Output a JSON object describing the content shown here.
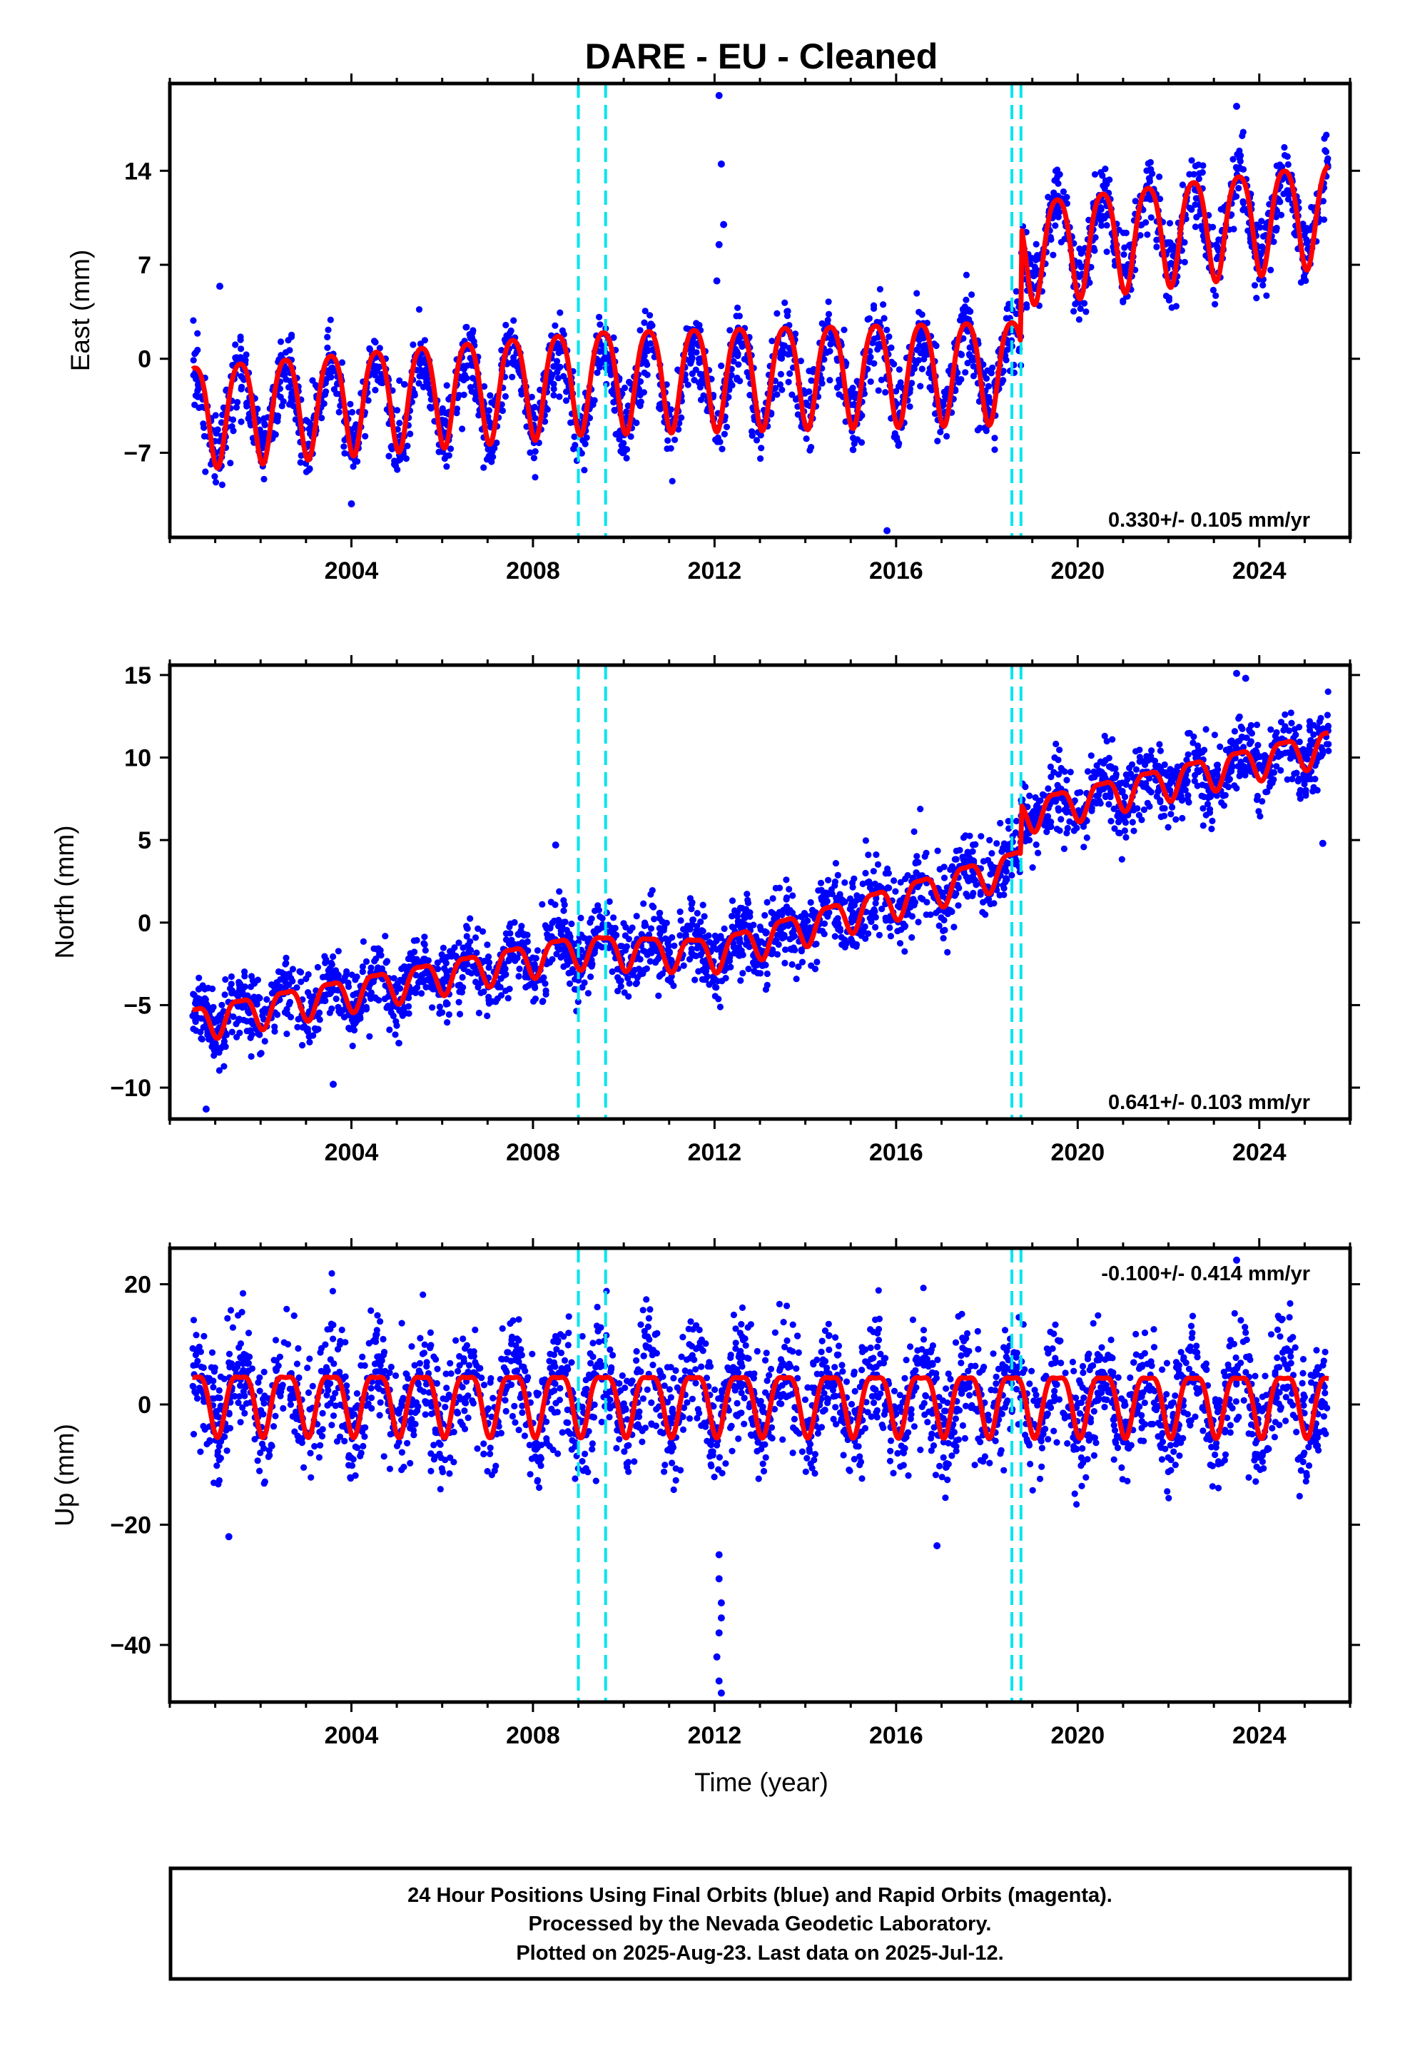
{
  "colors": {
    "points": "#0000ff",
    "model": "#ff0000",
    "offsets": "#00e5ee",
    "frame": "#000000"
  },
  "chart_data": [
    {
      "type": "scatter",
      "panel": "east",
      "title": "DARE  - EU - Cleaned",
      "ylabel": "East (mm)",
      "xlabel": "",
      "xlim": [
        2000.0,
        2026.0
      ],
      "ylim": [
        -13.3,
        20.5
      ],
      "xticks": [
        2004,
        2008,
        2012,
        2016,
        2020,
        2024
      ],
      "yticks": [
        -7,
        0,
        7,
        14
      ],
      "rate": "0.330+/- 0.105 mm/yr",
      "offsets": [
        2009.0,
        2009.6,
        2018.55,
        2018.75
      ],
      "series": [
        {
          "role": "observations",
          "x_start": 2000.5,
          "x_end": 2025.53,
          "annual_amplitude": 3.0,
          "scatter": 1.4,
          "trend_points": [
            [
              2000.5,
              -3.9
            ],
            [
              2018.75,
              -0.5
            ],
            [
              2018.76,
              8.3
            ],
            [
              2025.53,
              11.2
            ]
          ],
          "outliers": [
            [
              2001.1,
              5.4
            ],
            [
              2004.0,
              -10.8
            ],
            [
              2012.1,
              19.6
            ],
            [
              2012.15,
              14.5
            ],
            [
              2012.2,
              10.0
            ],
            [
              2012.1,
              8.5
            ],
            [
              2012.05,
              5.8
            ],
            [
              2015.8,
              -12.8
            ],
            [
              2023.5,
              18.8
            ]
          ]
        },
        {
          "role": "model",
          "x_start": 2000.5,
          "x_end": 2025.53,
          "annual_amplitude": 3.8,
          "semiannual_amplitude": 0.6,
          "trend_points": [
            [
              2000.5,
              -3.9
            ],
            [
              2009.0,
              -1.4
            ],
            [
              2009.01,
              -1.3
            ],
            [
              2018.75,
              -0.5
            ],
            [
              2018.76,
              8.3
            ],
            [
              2025.53,
              11.2
            ]
          ]
        }
      ]
    },
    {
      "type": "scatter",
      "panel": "north",
      "ylabel": "North (mm)",
      "xlabel": "",
      "xlim": [
        2000.0,
        2026.0
      ],
      "ylim": [
        -11.9,
        15.6
      ],
      "xticks": [
        2004,
        2008,
        2012,
        2016,
        2020,
        2024
      ],
      "yticks": [
        -10,
        -5,
        0,
        5,
        10,
        15
      ],
      "rate": "0.641+/- 0.103 mm/yr",
      "offsets": [
        2009.0,
        2009.6,
        2018.55,
        2018.75
      ],
      "series": [
        {
          "role": "observations",
          "x_start": 2000.5,
          "x_end": 2025.53,
          "annual_amplitude": 0.9,
          "scatter": 1.1,
          "trend_points": [
            [
              2000.5,
              -6.0
            ],
            [
              2009.0,
              -1.6
            ],
            [
              2012.0,
              -1.8
            ],
            [
              2018.75,
              3.6
            ],
            [
              2018.76,
              6.6
            ],
            [
              2025.53,
              10.8
            ]
          ],
          "outliers": [
            [
              2000.8,
              -11.3
            ],
            [
              2003.6,
              -9.8
            ],
            [
              2008.5,
              4.7
            ],
            [
              2023.5,
              15.1
            ],
            [
              2023.7,
              14.8
            ],
            [
              2025.4,
              4.8
            ]
          ]
        },
        {
          "role": "model",
          "x_start": 2000.5,
          "x_end": 2025.53,
          "annual_amplitude": 1.0,
          "semiannual_amplitude": 0.3,
          "trend_points": [
            [
              2000.5,
              -6.0
            ],
            [
              2009.0,
              -1.6
            ],
            [
              2012.0,
              -1.8
            ],
            [
              2018.75,
              3.6
            ],
            [
              2018.76,
              6.6
            ],
            [
              2025.53,
              10.8
            ]
          ]
        }
      ]
    },
    {
      "type": "scatter",
      "panel": "up",
      "ylabel": "Up (mm)",
      "xlabel": "Time (year)",
      "xlim": [
        2000.0,
        2026.0
      ],
      "ylim": [
        -49.5,
        26.0
      ],
      "xticks": [
        2004,
        2008,
        2012,
        2016,
        2020,
        2024
      ],
      "yticks": [
        -40,
        -20,
        0,
        20
      ],
      "rate": "-0.100+/- 0.414 mm/yr",
      "offsets": [
        2009.0,
        2009.6,
        2018.55,
        2018.75
      ],
      "series": [
        {
          "role": "observations",
          "x_start": 2000.5,
          "x_end": 2025.53,
          "annual_amplitude": 5.0,
          "scatter": 4.8,
          "trend_points": [
            [
              2000.5,
              1.0
            ],
            [
              2025.53,
              0.8
            ]
          ],
          "outliers": [
            [
              2001.3,
              -22.0
            ],
            [
              2012.1,
              -25.0
            ],
            [
              2012.1,
              -29.0
            ],
            [
              2012.15,
              -33.0
            ],
            [
              2012.15,
              -35.5
            ],
            [
              2012.1,
              -38.0
            ],
            [
              2012.05,
              -42.0
            ],
            [
              2012.1,
              -46.0
            ],
            [
              2012.15,
              -48.0
            ],
            [
              2016.9,
              -23.5
            ],
            [
              2023.5,
              24.0
            ]
          ]
        },
        {
          "role": "model",
          "x_start": 2000.5,
          "x_end": 2025.53,
          "annual_amplitude": 5.0,
          "semiannual_amplitude": 1.5,
          "trend_points": [
            [
              2000.5,
              1.0
            ],
            [
              2025.53,
              0.8
            ]
          ]
        }
      ]
    }
  ],
  "footer": {
    "line1": "24 Hour Positions Using Final Orbits (blue) and Rapid Orbits (magenta).",
    "line2": "Processed by the Nevada Geodetic Laboratory.",
    "line3": "Plotted on 2025-Aug-23. Last data on 2025-Jul-12."
  }
}
